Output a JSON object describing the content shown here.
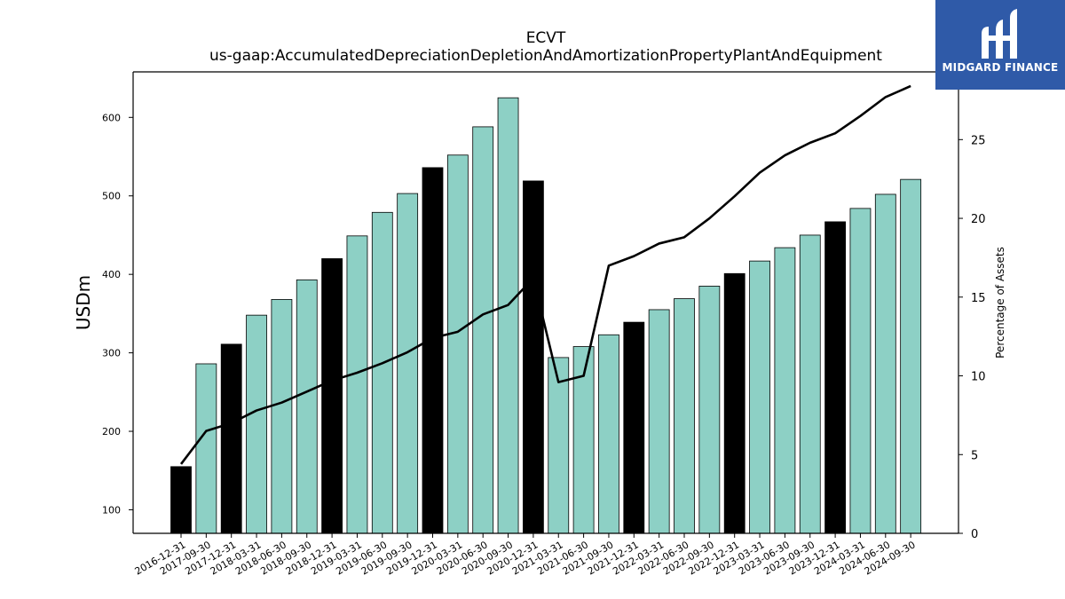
{
  "brand": {
    "name": "MIDGARD FINANCE"
  },
  "chart_data": {
    "type": "bar",
    "title": "ECVT",
    "subtitle": "us-gaap:AccumulatedDepreciationDepletionAndAmortizationPropertyPlantAndEquipment",
    "ylabel": "USDm",
    "y2label": "Percentage of Assets",
    "ylim": [
      70,
      658
    ],
    "y2lim": [
      0,
      29.3
    ],
    "yticks": [
      100,
      200,
      300,
      400,
      500,
      600
    ],
    "y2ticks": [
      0,
      5,
      10,
      15,
      20,
      25
    ],
    "colors": {
      "quarter_bar": "#8dd0c5",
      "year_end_bar": "#000000",
      "line": "#000000"
    },
    "categories": [
      "2016-12-31",
      "2017-09-30",
      "2017-12-31",
      "2018-03-31",
      "2018-06-30",
      "2018-09-30",
      "2018-12-31",
      "2019-03-31",
      "2019-06-30",
      "2019-09-30",
      "2019-12-31",
      "2020-03-31",
      "2020-06-30",
      "2020-09-30",
      "2020-12-31",
      "2021-03-31",
      "2021-06-30",
      "2021-09-30",
      "2021-12-31",
      "2022-03-31",
      "2022-06-30",
      "2022-09-30",
      "2022-12-31",
      "2023-03-31",
      "2023-06-30",
      "2023-09-30",
      "2023-12-31",
      "2024-03-31",
      "2024-06-30",
      "2024-09-30"
    ],
    "series": [
      {
        "kind": "bar",
        "values": [
          155,
          286,
          311,
          348,
          368,
          393,
          420,
          449,
          479,
          503,
          536,
          552,
          588,
          625,
          519,
          294,
          308,
          323,
          339,
          355,
          369,
          385,
          401,
          417,
          434,
          450,
          467,
          484,
          502,
          521
        ],
        "year_end": [
          true,
          false,
          true,
          false,
          false,
          false,
          true,
          false,
          false,
          false,
          true,
          false,
          false,
          false,
          true,
          false,
          false,
          false,
          true,
          false,
          false,
          false,
          true,
          false,
          false,
          false,
          true,
          false,
          false,
          false
        ]
      },
      {
        "kind": "line",
        "axis": "right",
        "values": [
          4.4,
          6.5,
          7.0,
          7.8,
          8.3,
          9.0,
          9.7,
          10.2,
          10.8,
          11.5,
          12.4,
          12.8,
          13.9,
          14.5,
          16.2,
          9.6,
          10.0,
          17.0,
          17.6,
          18.4,
          18.8,
          20.0,
          21.4,
          22.9,
          24.0,
          24.8,
          25.4,
          26.5,
          27.7,
          28.4
        ]
      }
    ]
  }
}
